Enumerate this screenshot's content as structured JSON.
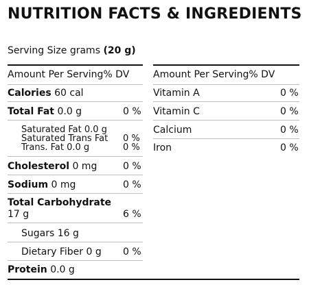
{
  "title": "NUTRITION FACTS & INGREDIENTS",
  "serving": {
    "label": "Serving Size grams",
    "value": "(20 g)"
  },
  "header": {
    "amount": "Amount Per Serving",
    "dv": "% DV"
  },
  "left": {
    "calories": {
      "label": "Calories",
      "value": "60 cal"
    },
    "total_fat": {
      "label": "Total Fat",
      "value": "0.0 g",
      "dv": "0 %"
    },
    "saturated_fat": {
      "label": "Saturated Fat 0.0 g"
    },
    "sat_trans": {
      "label": "Saturated Trans Fat",
      "dv": "0 %"
    },
    "trans_fat": {
      "label": "Trans. Fat 0.0 g",
      "dv": "0 %"
    },
    "cholesterol": {
      "label": "Cholesterol",
      "value": "0 mg",
      "dv": "0 %"
    },
    "sodium": {
      "label": "Sodium",
      "value": "0 mg",
      "dv": "0 %"
    },
    "carbs": {
      "label": "Total Carbohydrate",
      "value": "17 g",
      "dv": "6 %"
    },
    "sugars": {
      "label": "Sugars 16 g"
    },
    "fiber": {
      "label": "Dietary Fiber 0 g",
      "dv": "0 %"
    },
    "protein": {
      "label": "Protein",
      "value": "0.0 g"
    }
  },
  "right": {
    "vitamin_a": {
      "label": "Vitamin A",
      "dv": "0 %"
    },
    "vitamin_c": {
      "label": "Vitamin C",
      "dv": "0 %"
    },
    "calcium": {
      "label": "Calcium",
      "dv": "0 %"
    },
    "iron": {
      "label": "Iron",
      "dv": "0 %"
    }
  }
}
